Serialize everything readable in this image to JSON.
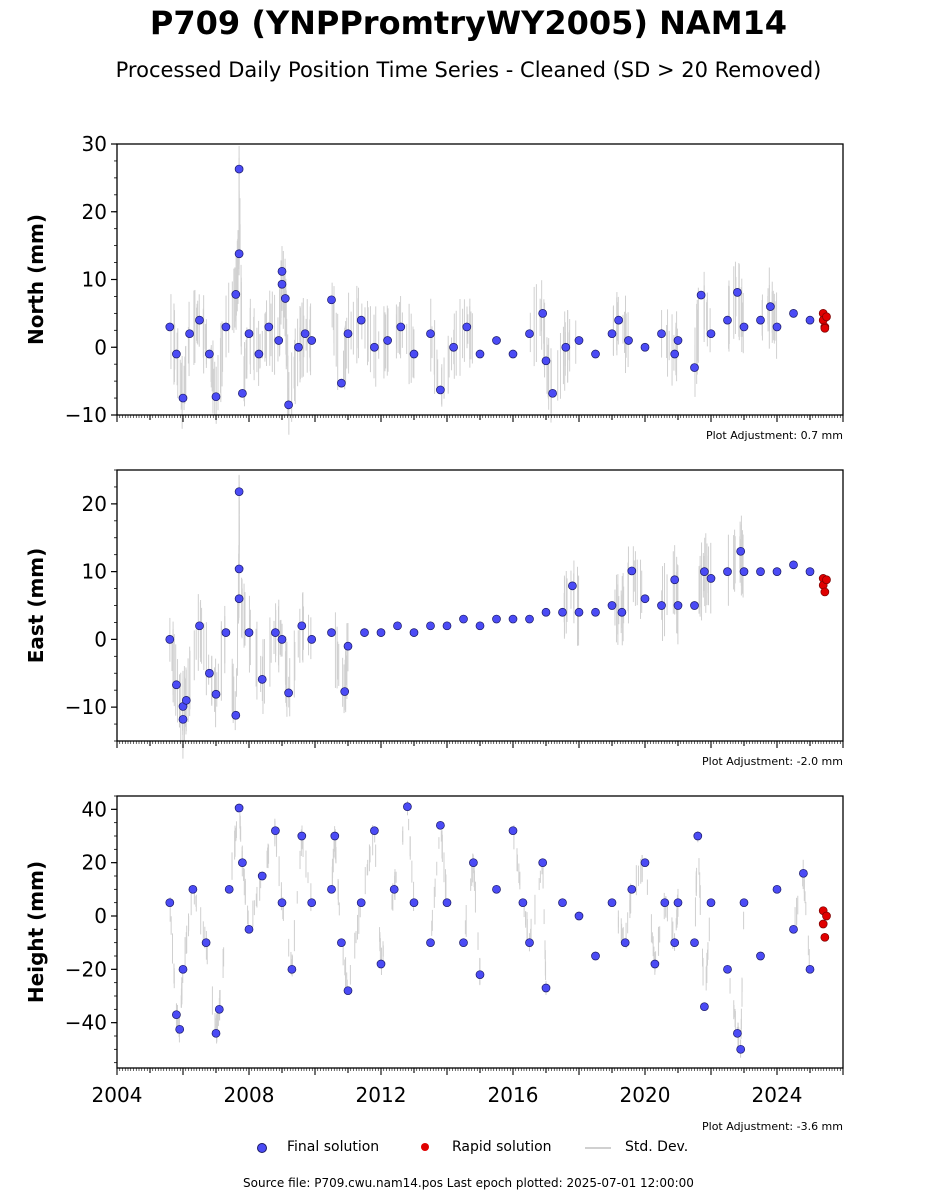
{
  "header": {
    "title": "P709 (YNPPromtryWY2005) NAM14",
    "subtitle": "Processed Daily Position Time Series - Cleaned (SD > 20 Removed)"
  },
  "chart_data": [
    {
      "type": "scatter",
      "ylabel": "North (mm)",
      "xlim": [
        2004,
        2026
      ],
      "ylim": [
        -10,
        30
      ],
      "yticks": [
        -10,
        0,
        10,
        20,
        30
      ],
      "adjustment": "Plot Adjustment: 0.7 mm",
      "series": [
        {
          "name": "Final solution",
          "color": "#4b4bf5",
          "values": [
            [
              2005.6,
              3
            ],
            [
              2005.8,
              -1
            ],
            [
              2006.0,
              -7.5
            ],
            [
              2006.2,
              2
            ],
            [
              2006.5,
              4
            ],
            [
              2006.8,
              -1
            ],
            [
              2007.0,
              -7.3
            ],
            [
              2007.3,
              3
            ],
            [
              2007.6,
              7.8
            ],
            [
              2007.7,
              13.8
            ],
            [
              2007.7,
              26.3
            ],
            [
              2007.8,
              -6.8
            ],
            [
              2008.0,
              2
            ],
            [
              2008.3,
              -1
            ],
            [
              2008.6,
              3
            ],
            [
              2008.9,
              1
            ],
            [
              2009.0,
              11.2
            ],
            [
              2009.0,
              9.3
            ],
            [
              2009.1,
              7.2
            ],
            [
              2009.2,
              -8.5
            ],
            [
              2009.5,
              0
            ],
            [
              2009.7,
              2
            ],
            [
              2009.9,
              1
            ],
            [
              2010.5,
              7
            ],
            [
              2010.8,
              -5.3
            ],
            [
              2011.0,
              2
            ],
            [
              2011.4,
              4
            ],
            [
              2011.8,
              0
            ],
            [
              2012.2,
              1
            ],
            [
              2012.6,
              3
            ],
            [
              2013.0,
              -1
            ],
            [
              2013.5,
              2
            ],
            [
              2013.8,
              -6.3
            ],
            [
              2014.2,
              0
            ],
            [
              2014.6,
              3
            ],
            [
              2015.0,
              -1
            ],
            [
              2015.5,
              1
            ],
            [
              2016.0,
              -1
            ],
            [
              2016.5,
              2
            ],
            [
              2016.9,
              5
            ],
            [
              2017.0,
              -2
            ],
            [
              2017.2,
              -6.8
            ],
            [
              2017.6,
              0
            ],
            [
              2018.0,
              1
            ],
            [
              2018.5,
              -1
            ],
            [
              2019.0,
              2
            ],
            [
              2019.2,
              4
            ],
            [
              2019.5,
              1
            ],
            [
              2020.0,
              0
            ],
            [
              2020.5,
              2
            ],
            [
              2020.9,
              -1
            ],
            [
              2021.0,
              1
            ],
            [
              2021.5,
              -3
            ],
            [
              2021.7,
              7.7
            ],
            [
              2022.0,
              2
            ],
            [
              2022.5,
              4
            ],
            [
              2022.8,
              8.1
            ],
            [
              2023.0,
              3
            ],
            [
              2023.5,
              4
            ],
            [
              2023.8,
              6
            ],
            [
              2024.0,
              3
            ],
            [
              2024.5,
              5
            ],
            [
              2025.0,
              4
            ]
          ]
        },
        {
          "name": "Rapid solution",
          "color": "#e00000",
          "values": [
            [
              2025.4,
              5
            ],
            [
              2025.4,
              4
            ],
            [
              2025.45,
              3
            ],
            [
              2025.45,
              2.8
            ],
            [
              2025.5,
              4.5
            ]
          ]
        }
      ]
    },
    {
      "type": "scatter",
      "ylabel": "East (mm)",
      "xlim": [
        2004,
        2026
      ],
      "ylim": [
        -15,
        25
      ],
      "yticks": [
        -10,
        0,
        10,
        20
      ],
      "adjustment": "Plot Adjustment: -2.0 mm",
      "series": [
        {
          "name": "Final solution",
          "color": "#4b4bf5",
          "values": [
            [
              2005.6,
              0
            ],
            [
              2005.8,
              -6.7
            ],
            [
              2006.0,
              -11.8
            ],
            [
              2006.0,
              -9.9
            ],
            [
              2006.1,
              -9
            ],
            [
              2006.5,
              2
            ],
            [
              2006.8,
              -5
            ],
            [
              2007.0,
              -8.1
            ],
            [
              2007.3,
              1
            ],
            [
              2007.6,
              -11.2
            ],
            [
              2007.7,
              10.4
            ],
            [
              2007.7,
              21.8
            ],
            [
              2007.7,
              6
            ],
            [
              2008.0,
              1
            ],
            [
              2008.4,
              -5.9
            ],
            [
              2008.8,
              1
            ],
            [
              2009.0,
              0
            ],
            [
              2009.2,
              -7.9
            ],
            [
              2009.6,
              2
            ],
            [
              2009.9,
              0
            ],
            [
              2010.5,
              1
            ],
            [
              2010.9,
              -7.7
            ],
            [
              2011.0,
              -1
            ],
            [
              2011.5,
              1
            ],
            [
              2012.0,
              1
            ],
            [
              2012.5,
              2
            ],
            [
              2013.0,
              1
            ],
            [
              2013.5,
              2
            ],
            [
              2014.0,
              2
            ],
            [
              2014.5,
              3
            ],
            [
              2015.0,
              2
            ],
            [
              2015.5,
              3
            ],
            [
              2016.0,
              3
            ],
            [
              2016.5,
              3
            ],
            [
              2017.0,
              4
            ],
            [
              2017.5,
              4
            ],
            [
              2017.8,
              7.9
            ],
            [
              2018.0,
              4
            ],
            [
              2018.5,
              4
            ],
            [
              2019.0,
              5
            ],
            [
              2019.3,
              4
            ],
            [
              2019.6,
              10.1
            ],
            [
              2020.0,
              6
            ],
            [
              2020.5,
              5
            ],
            [
              2020.9,
              8.8
            ],
            [
              2021.0,
              5
            ],
            [
              2021.5,
              5
            ],
            [
              2021.8,
              10
            ],
            [
              2022.0,
              9
            ],
            [
              2022.5,
              10
            ],
            [
              2022.9,
              13
            ],
            [
              2023.0,
              10
            ],
            [
              2023.5,
              10
            ],
            [
              2024.0,
              10
            ],
            [
              2024.5,
              11
            ],
            [
              2025.0,
              10
            ]
          ]
        },
        {
          "name": "Rapid solution",
          "color": "#e00000",
          "values": [
            [
              2025.4,
              9
            ],
            [
              2025.4,
              8
            ],
            [
              2025.45,
              7
            ],
            [
              2025.5,
              8.8
            ]
          ]
        }
      ]
    },
    {
      "type": "scatter",
      "ylabel": "Height (mm)",
      "xlim": [
        2004,
        2026
      ],
      "ylim": [
        -57,
        45
      ],
      "yticks": [
        -40,
        -20,
        0,
        20,
        40
      ],
      "xticks": [
        2004,
        2008,
        2012,
        2016,
        2020,
        2024
      ],
      "adjustment": "Plot Adjustment: -3.6 mm",
      "series": [
        {
          "name": "Final solution",
          "color": "#4b4bf5",
          "values": [
            [
              2005.6,
              5
            ],
            [
              2005.8,
              -37
            ],
            [
              2005.9,
              -42.5
            ],
            [
              2006.0,
              -20
            ],
            [
              2006.3,
              10
            ],
            [
              2006.7,
              -10
            ],
            [
              2007.0,
              -44
            ],
            [
              2007.1,
              -35
            ],
            [
              2007.4,
              10
            ],
            [
              2007.7,
              40.5
            ],
            [
              2007.8,
              20
            ],
            [
              2008.0,
              -5
            ],
            [
              2008.4,
              15
            ],
            [
              2008.8,
              32
            ],
            [
              2009.0,
              5
            ],
            [
              2009.3,
              -20
            ],
            [
              2009.6,
              30
            ],
            [
              2009.9,
              5
            ],
            [
              2010.5,
              10
            ],
            [
              2010.6,
              30
            ],
            [
              2010.8,
              -10
            ],
            [
              2011.0,
              -28
            ],
            [
              2011.4,
              5
            ],
            [
              2011.8,
              32
            ],
            [
              2012.0,
              -18
            ],
            [
              2012.4,
              10
            ],
            [
              2012.8,
              41
            ],
            [
              2013.0,
              5
            ],
            [
              2013.5,
              -10
            ],
            [
              2013.8,
              34
            ],
            [
              2014.0,
              5
            ],
            [
              2014.5,
              -10
            ],
            [
              2014.8,
              20
            ],
            [
              2015.0,
              -22
            ],
            [
              2015.5,
              10
            ],
            [
              2016.0,
              32
            ],
            [
              2016.3,
              5
            ],
            [
              2016.5,
              -10
            ],
            [
              2016.9,
              20
            ],
            [
              2017.0,
              -27
            ],
            [
              2017.5,
              5
            ],
            [
              2018.0,
              0
            ],
            [
              2018.5,
              -15
            ],
            [
              2019.0,
              5
            ],
            [
              2019.4,
              -10
            ],
            [
              2019.6,
              10
            ],
            [
              2020.0,
              20
            ],
            [
              2020.3,
              -18
            ],
            [
              2020.6,
              5
            ],
            [
              2020.9,
              -10
            ],
            [
              2021.0,
              5
            ],
            [
              2021.5,
              -10
            ],
            [
              2021.6,
              30
            ],
            [
              2021.8,
              -34
            ],
            [
              2022.0,
              5
            ],
            [
              2022.5,
              -20
            ],
            [
              2022.8,
              -44
            ],
            [
              2022.9,
              -50
            ],
            [
              2023.0,
              5
            ],
            [
              2023.5,
              -15
            ],
            [
              2024.0,
              10
            ],
            [
              2024.5,
              -5
            ],
            [
              2024.8,
              16
            ],
            [
              2025.0,
              -20
            ]
          ]
        },
        {
          "name": "Rapid solution",
          "color": "#e00000",
          "values": [
            [
              2025.4,
              2
            ],
            [
              2025.4,
              -3
            ],
            [
              2025.45,
              -8
            ],
            [
              2025.5,
              0
            ]
          ]
        }
      ]
    }
  ],
  "legend": {
    "final_label": "Final solution",
    "rapid_label": "Rapid solution",
    "std_label": "Std. Dev.",
    "final_color": "#4b4bf5",
    "rapid_color": "#e00000",
    "std_color": "#d0d0d0"
  },
  "footer": "Source file: P709.cwu.nam14.pos  Last epoch plotted: 2025-07-01 12:00:00"
}
